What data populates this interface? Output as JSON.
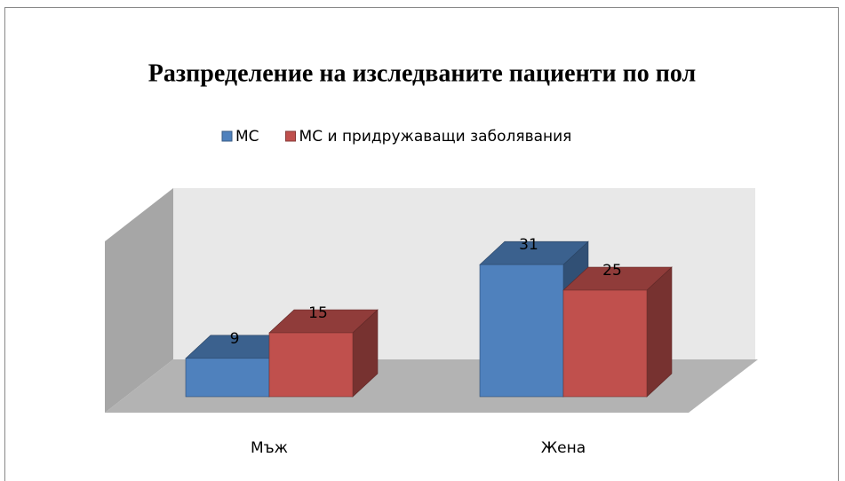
{
  "chart_data": {
    "type": "bar3d",
    "title": "Разпределение на изследваните пациенти по пол",
    "categories": [
      "Мъж",
      "Жена"
    ],
    "series": [
      {
        "name": "МС",
        "color": "#4f81bd",
        "values": [
          9,
          31
        ]
      },
      {
        "name": "МС и придружаващи заболявания",
        "color": "#c0504d",
        "values": [
          15,
          25
        ]
      }
    ],
    "legend": "top"
  }
}
